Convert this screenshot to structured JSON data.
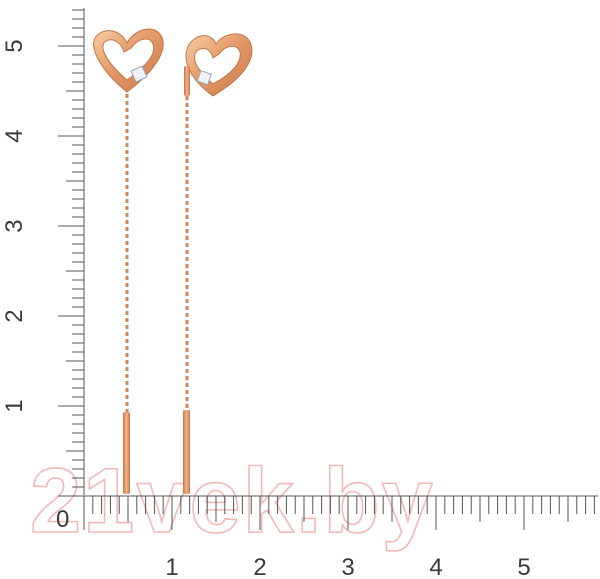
{
  "rulers": {
    "vertical": {
      "labels": [
        "5",
        "4",
        "3",
        "2",
        "1"
      ],
      "unit_values": [
        5,
        4,
        3,
        2,
        1
      ]
    },
    "horizontal": {
      "origin_label": "0",
      "labels": [
        "1",
        "2",
        "3",
        "4",
        "5"
      ],
      "unit_values": [
        1,
        2,
        3,
        4,
        5
      ]
    },
    "minor_divisions_per_unit": 10
  },
  "watermark": {
    "text": "21vek.by"
  },
  "product": {
    "items": [
      "earring-left",
      "earring-right"
    ],
    "metal_color": "#d98b5e",
    "metal_highlight": "#f6c49a",
    "stone_color": "#e8eef4"
  }
}
